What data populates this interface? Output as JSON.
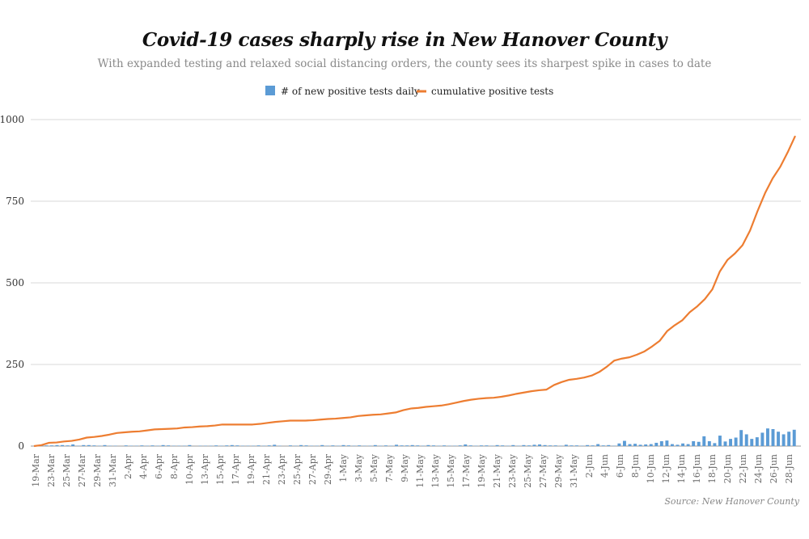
{
  "chart_data": {
    "type": "bar+line",
    "title": "Covid-19 cases sharply rise in New Hanover County",
    "subtitle": "With expanded testing and relaxed social distancing orders, the county sees its sharpest spike in cases to date",
    "source": "Source: New Hanover County",
    "xlabel": "",
    "ylabel": "",
    "ylim": [
      0,
      1000
    ],
    "y_ticks": [
      "0",
      "250",
      "500",
      "750",
      "1000"
    ],
    "grid": true,
    "legend_position": "top-center",
    "colors": {
      "bar": "#5b9bd5",
      "line": "#ed7d31",
      "grid": "#d9d9d9"
    },
    "x_tick_labels": [
      "19-Mar",
      "23-Mar",
      "25-Mar",
      "27-Mar",
      "29-Mar",
      "31-Mar",
      "2-Apr",
      "4-Apr",
      "6-Apr",
      "8-Apr",
      "10-Apr",
      "13-Apr",
      "15-Apr",
      "17-Apr",
      "19-Apr",
      "21-Apr",
      "23-Apr",
      "25-Apr",
      "27-Apr",
      "29-Apr",
      "1-May",
      "3-May",
      "5-May",
      "7-May",
      "9-May",
      "11-May",
      "13-May",
      "15-May",
      "17-May",
      "19-May",
      "21-May",
      "23-May",
      "25-May",
      "27-May",
      "29-May",
      "31-May",
      "2-Jun",
      "4-Jun",
      "6-Jun",
      "8-Jun",
      "10-Jun",
      "12-Jun",
      "14-Jun",
      "16-Jun",
      "18-Jun",
      "20-Jun",
      "22-Jun",
      "24-Jun",
      "26-Jun",
      "28-Jun"
    ],
    "series": [
      {
        "name": "# of new positive tests daily",
        "type": "bar",
        "values": [
          1,
          4,
          2,
          2,
          3,
          3,
          2,
          5,
          1,
          3,
          3,
          2,
          1,
          3,
          1,
          1,
          0,
          2,
          1,
          1,
          2,
          1,
          2,
          1,
          3,
          2,
          1,
          1,
          1,
          3,
          0,
          1,
          1,
          1,
          2,
          1,
          2,
          3,
          2,
          1,
          1,
          1,
          2,
          1,
          2,
          4,
          1,
          0,
          2,
          1,
          3,
          2,
          1,
          1,
          3,
          1,
          2,
          1,
          3,
          2,
          1,
          2,
          1,
          1,
          3,
          1,
          2,
          1,
          4,
          2,
          2,
          3,
          2,
          1,
          3,
          2,
          1,
          2,
          1,
          1,
          2,
          5,
          2,
          1,
          2,
          2,
          1,
          3,
          2,
          1,
          3,
          1,
          3,
          2,
          4,
          5,
          3,
          2,
          2,
          1,
          4,
          2,
          2,
          1,
          3,
          2,
          6,
          2,
          3,
          1,
          8,
          16,
          6,
          7,
          4,
          5,
          6,
          10,
          15,
          17,
          6,
          4,
          8,
          6,
          15,
          13,
          30,
          15,
          9,
          32,
          14,
          22,
          26,
          49,
          36,
          22,
          27,
          41,
          54,
          52,
          44,
          36,
          44,
          50
        ]
      },
      {
        "name": "cumulative positive tests",
        "type": "line",
        "values": [
          0,
          3,
          10,
          11,
          14,
          16,
          20,
          26,
          28,
          31,
          35,
          40,
          42,
          44,
          45,
          48,
          51,
          52,
          53,
          54,
          57,
          58,
          60,
          61,
          63,
          66,
          66,
          66,
          66,
          66,
          68,
          71,
          74,
          76,
          78,
          78,
          78,
          79,
          81,
          83,
          84,
          86,
          88,
          92,
          94,
          96,
          97,
          100,
          103,
          110,
          115,
          117,
          120,
          122,
          124,
          128,
          133,
          138,
          142,
          145,
          147,
          148,
          151,
          155,
          160,
          164,
          168,
          171,
          173,
          187,
          196,
          203,
          206,
          210,
          216,
          227,
          243,
          262,
          268,
          272,
          280,
          290,
          305,
          322,
          352,
          370,
          385,
          410,
          428,
          450,
          480,
          535,
          570,
          590,
          615,
          660,
          720,
          775,
          820,
          855,
          900,
          950
        ]
      }
    ]
  }
}
